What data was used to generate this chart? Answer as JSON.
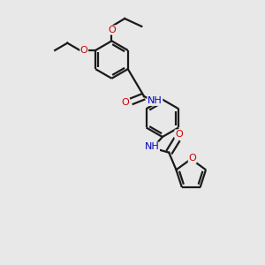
{
  "bg_color": "#e8e8e8",
  "bond_color": "#1a1a1a",
  "oxygen_color": "#cc0000",
  "nitrogen_color": "#0000bb",
  "line_width": 1.6,
  "font_size_atom": 8.0,
  "fig_width": 3.0,
  "fig_height": 3.0,
  "dpi": 100,
  "xlim": [
    0,
    10
  ],
  "ylim": [
    0,
    10
  ]
}
